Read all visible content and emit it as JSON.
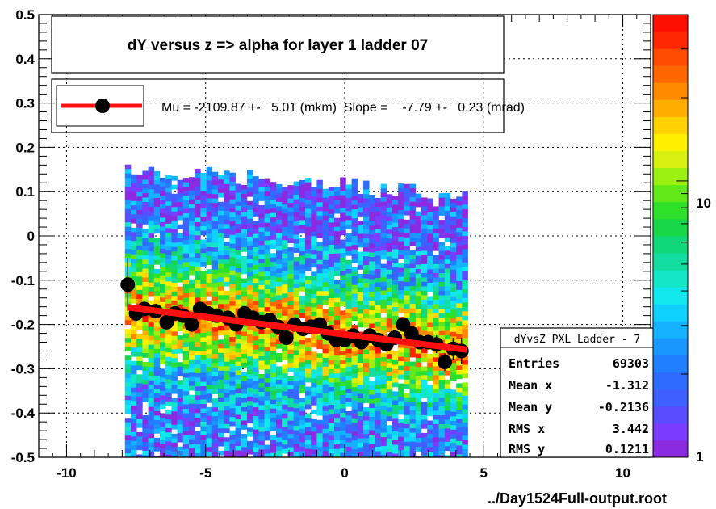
{
  "chart_data": {
    "type": "heatmap",
    "title": "dY versus  z  => alpha for layer 1 ladder 07",
    "xlim": [
      -11,
      11
    ],
    "ylim": [
      -0.5,
      0.5
    ],
    "x_ticks": [
      "-10",
      "-5",
      "0",
      "5",
      "10"
    ],
    "x_tick_values": [
      -10,
      -5,
      0,
      5,
      10
    ],
    "y_ticks": [
      "0.5",
      "0.4",
      "0.3",
      "0.2",
      "0.1",
      "0",
      "-0.1",
      "-0.2",
      "-0.3",
      "-0.4",
      "-0.5"
    ],
    "y_tick_values": [
      0.5,
      0.4,
      0.3,
      0.2,
      0.1,
      0,
      -0.1,
      -0.2,
      -0.3,
      -0.4,
      -0.5
    ],
    "grid": true,
    "colorbar": {
      "scale": "log",
      "labels": [
        "10",
        "1"
      ],
      "label_values": [
        10,
        1
      ],
      "range": [
        1,
        40
      ],
      "colors": [
        "#8a2be2",
        "#7b3cff",
        "#5a4dff",
        "#3f5fff",
        "#2f6bff",
        "#1f7fff",
        "#1a96ff",
        "#14b2ff",
        "#0fd0ff",
        "#10e8ee",
        "#14e6c8",
        "#12dca0",
        "#10d878",
        "#18d84a",
        "#2fe02a",
        "#60e818",
        "#9cf010",
        "#d8f010",
        "#fff000",
        "#ffd200",
        "#ffae00",
        "#ff8a00",
        "#ff6600",
        "#ff4a00",
        "#ff2600",
        "#ff1000"
      ]
    },
    "profile_points": {
      "x": [
        -7.8,
        -7.5,
        -7.2,
        -6.8,
        -6.4,
        -6.1,
        -5.8,
        -5.5,
        -5.2,
        -4.9,
        -4.6,
        -4.2,
        -3.9,
        -3.6,
        -3.3,
        -3.0,
        -2.7,
        -2.4,
        -2.1,
        -1.8,
        -1.5,
        -1.2,
        -0.9,
        -0.6,
        -0.3,
        0.0,
        0.3,
        0.6,
        0.9,
        1.2,
        1.5,
        1.8,
        2.1,
        2.4,
        2.7,
        3.0,
        3.3,
        3.6,
        3.9,
        4.2
      ],
      "y": [
        -0.11,
        -0.175,
        -0.165,
        -0.17,
        -0.195,
        -0.175,
        -0.18,
        -0.2,
        -0.165,
        -0.175,
        -0.18,
        -0.185,
        -0.2,
        -0.175,
        -0.185,
        -0.195,
        -0.19,
        -0.205,
        -0.23,
        -0.2,
        -0.21,
        -0.205,
        -0.2,
        -0.22,
        -0.235,
        -0.235,
        -0.225,
        -0.24,
        -0.225,
        -0.235,
        -0.245,
        -0.23,
        -0.2,
        -0.22,
        -0.24,
        -0.24,
        -0.245,
        -0.285,
        -0.255,
        -0.26
      ],
      "yerr": [
        0.06,
        0.02,
        0.015,
        0.015,
        0.015,
        0.012,
        0.012,
        0.012,
        0.012,
        0.012,
        0.012,
        0.012,
        0.012,
        0.012,
        0.012,
        0.012,
        0.012,
        0.012,
        0.012,
        0.012,
        0.012,
        0.012,
        0.012,
        0.012,
        0.012,
        0.012,
        0.012,
        0.012,
        0.012,
        0.012,
        0.012,
        0.012,
        0.015,
        0.015,
        0.015,
        0.015,
        0.02,
        0.02,
        0.025,
        0.03
      ]
    },
    "fit_line": {
      "x": [
        -7.8,
        4.4
      ],
      "y": [
        -0.161,
        -0.257
      ]
    },
    "fit_box": {
      "text": "Mu = -2109.87 +-   5.01 (mkm)  Slope =    -7.79 +-   0.23 (mrad)"
    },
    "stats_box": {
      "title": "dYvsZ PXL Ladder - 7",
      "rows": [
        {
          "label": "Entries",
          "value": "69303"
        },
        {
          "label": "Mean x",
          "value": "-1.312"
        },
        {
          "label": "Mean y",
          "value": "-0.2136"
        },
        {
          "label": "RMS x",
          "value": "3.442"
        },
        {
          "label": "RMS y",
          "value": "0.1211"
        }
      ]
    },
    "footer": "../Day1524Full-output.root"
  }
}
